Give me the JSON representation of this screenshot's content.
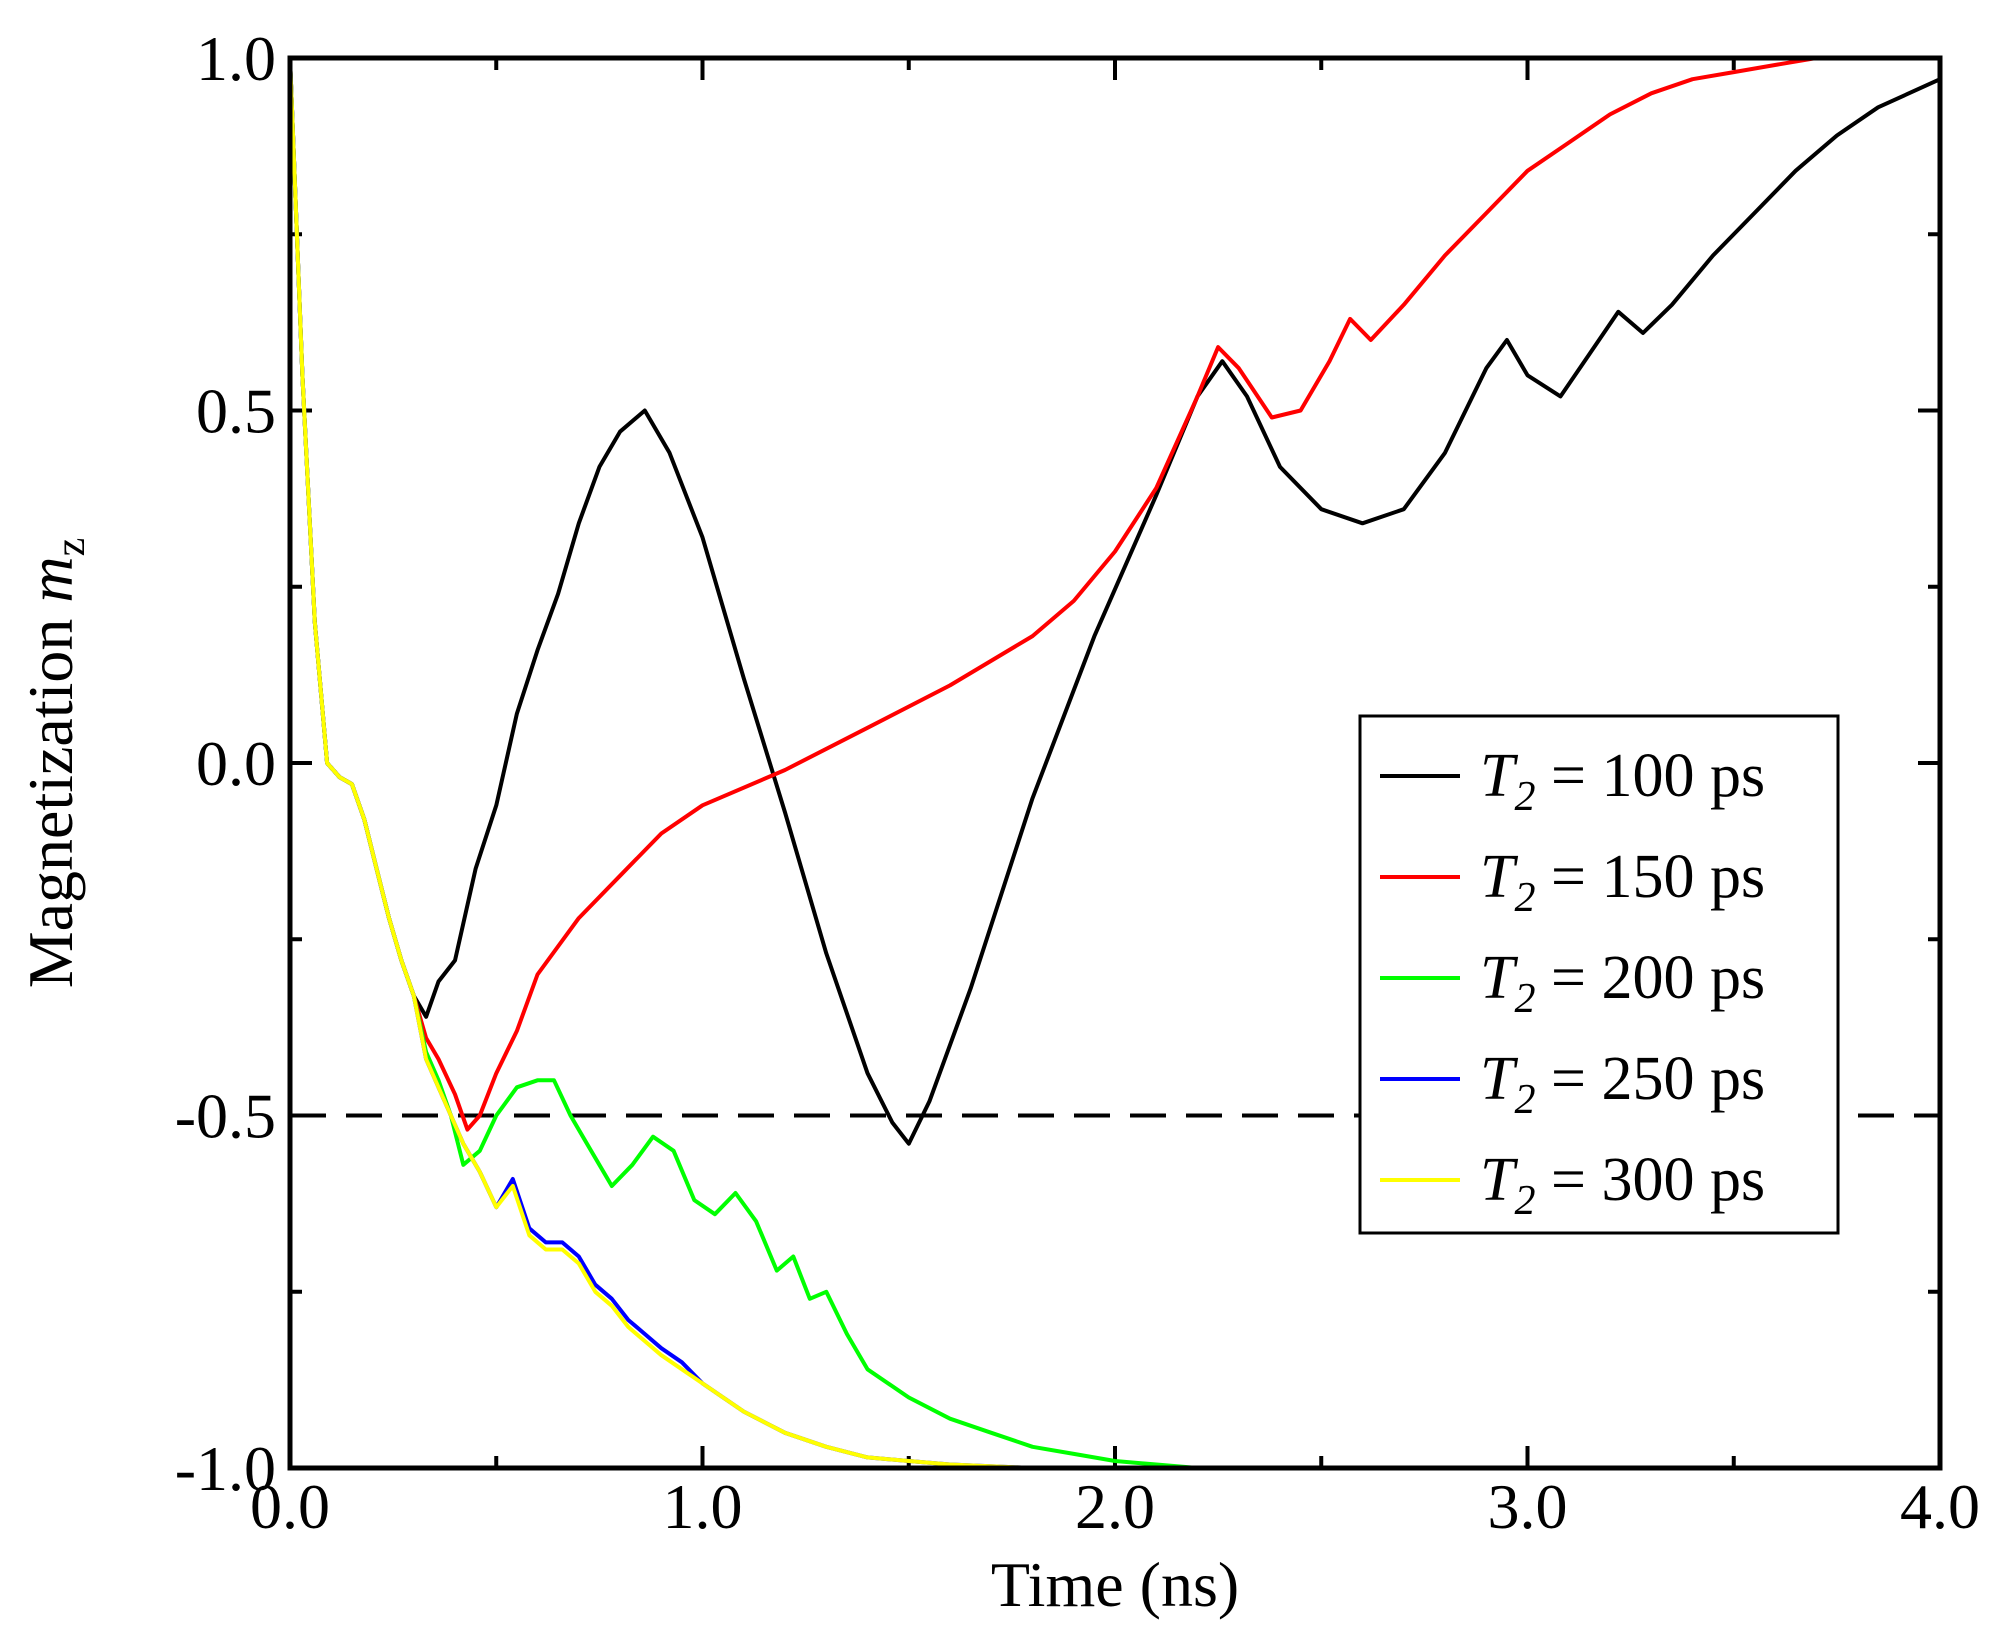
{
  "chart_data": {
    "type": "line",
    "xlabel": "Time (ns)",
    "ylabel_text": "Magnetization ",
    "ylabel_var": "m",
    "ylabel_sub": "z",
    "xlim": [
      0,
      4
    ],
    "ylim": [
      -1,
      1
    ],
    "x_ticks": [
      0,
      1,
      2,
      3,
      4
    ],
    "x_tick_labels": [
      "0.0",
      "1.0",
      "2.0",
      "3.0",
      "4.0"
    ],
    "y_ticks": [
      -1,
      -0.5,
      0,
      0.5,
      1
    ],
    "y_tick_labels": [
      "-1.0",
      "-0.5",
      "0.0",
      "0.5",
      "1.0"
    ],
    "x_minor_ticks": [
      0.5,
      1.5,
      2.5,
      3.5
    ],
    "y_minor_ticks": [
      -0.75,
      -0.25,
      0.25,
      0.75
    ],
    "reference_line": {
      "y": -0.5,
      "style": "dashed",
      "color": "#000000"
    },
    "legend": {
      "placement": "middle-right",
      "var": "T",
      "sub": "2"
    },
    "series": [
      {
        "name": "T2 = 100 ps",
        "legend_label": " = 100 ps",
        "color": "#000000",
        "x": [
          0,
          0.03,
          0.06,
          0.09,
          0.12,
          0.15,
          0.18,
          0.21,
          0.24,
          0.27,
          0.3,
          0.33,
          0.36,
          0.4,
          0.45,
          0.5,
          0.55,
          0.6,
          0.65,
          0.7,
          0.75,
          0.8,
          0.86,
          0.92,
          1.0,
          1.1,
          1.2,
          1.3,
          1.4,
          1.46,
          1.5,
          1.55,
          1.65,
          1.8,
          1.95,
          2.1,
          2.2,
          2.26,
          2.32,
          2.4,
          2.5,
          2.6,
          2.7,
          2.8,
          2.9,
          2.95,
          3.0,
          3.08,
          3.15,
          3.22,
          3.28,
          3.35,
          3.45,
          3.55,
          3.65,
          3.75,
          3.85,
          4.0
        ],
        "y": [
          1.0,
          0.55,
          0.2,
          0.0,
          -0.02,
          -0.03,
          -0.08,
          -0.15,
          -0.22,
          -0.28,
          -0.33,
          -0.36,
          -0.31,
          -0.28,
          -0.15,
          -0.06,
          0.07,
          0.16,
          0.24,
          0.34,
          0.42,
          0.47,
          0.5,
          0.44,
          0.32,
          0.12,
          -0.07,
          -0.27,
          -0.44,
          -0.51,
          -0.54,
          -0.48,
          -0.32,
          -0.05,
          0.18,
          0.38,
          0.52,
          0.57,
          0.52,
          0.42,
          0.36,
          0.34,
          0.36,
          0.44,
          0.56,
          0.6,
          0.55,
          0.52,
          0.58,
          0.64,
          0.61,
          0.65,
          0.72,
          0.78,
          0.84,
          0.89,
          0.93,
          0.97
        ]
      },
      {
        "name": "T2 = 150 ps",
        "legend_label": " = 150 ps",
        "color": "#ff0000",
        "x": [
          0,
          0.03,
          0.06,
          0.09,
          0.12,
          0.15,
          0.18,
          0.21,
          0.24,
          0.27,
          0.3,
          0.33,
          0.36,
          0.4,
          0.43,
          0.46,
          0.5,
          0.55,
          0.6,
          0.7,
          0.8,
          0.9,
          1.0,
          1.2,
          1.4,
          1.6,
          1.8,
          1.9,
          2.0,
          2.1,
          2.2,
          2.25,
          2.3,
          2.38,
          2.45,
          2.52,
          2.57,
          2.62,
          2.7,
          2.8,
          2.9,
          3.0,
          3.1,
          3.2,
          3.3,
          3.4,
          3.5,
          3.6,
          3.7,
          3.8,
          4.0
        ],
        "y": [
          1.0,
          0.55,
          0.2,
          0.0,
          -0.02,
          -0.03,
          -0.08,
          -0.15,
          -0.22,
          -0.28,
          -0.33,
          -0.39,
          -0.42,
          -0.47,
          -0.52,
          -0.5,
          -0.44,
          -0.38,
          -0.3,
          -0.22,
          -0.16,
          -0.1,
          -0.06,
          -0.01,
          0.05,
          0.11,
          0.18,
          0.23,
          0.3,
          0.39,
          0.52,
          0.59,
          0.56,
          0.49,
          0.5,
          0.57,
          0.63,
          0.6,
          0.65,
          0.72,
          0.78,
          0.84,
          0.88,
          0.92,
          0.95,
          0.97,
          0.98,
          0.99,
          1.0,
          1.0,
          1.0
        ]
      },
      {
        "name": "T2 = 200 ps",
        "legend_label": " = 200 ps",
        "color": "#00ff00",
        "x": [
          0,
          0.03,
          0.06,
          0.09,
          0.12,
          0.15,
          0.18,
          0.21,
          0.24,
          0.27,
          0.3,
          0.33,
          0.36,
          0.39,
          0.42,
          0.46,
          0.5,
          0.55,
          0.6,
          0.64,
          0.68,
          0.73,
          0.78,
          0.83,
          0.88,
          0.93,
          0.98,
          1.03,
          1.08,
          1.13,
          1.18,
          1.22,
          1.26,
          1.3,
          1.35,
          1.4,
          1.5,
          1.6,
          1.7,
          1.8,
          1.9,
          2.0,
          2.1,
          2.2,
          2.4,
          2.6
        ],
        "y": [
          1.0,
          0.55,
          0.2,
          0.0,
          -0.02,
          -0.03,
          -0.08,
          -0.15,
          -0.22,
          -0.28,
          -0.33,
          -0.41,
          -0.45,
          -0.5,
          -0.57,
          -0.55,
          -0.5,
          -0.46,
          -0.45,
          -0.45,
          -0.5,
          -0.55,
          -0.6,
          -0.57,
          -0.53,
          -0.55,
          -0.62,
          -0.64,
          -0.61,
          -0.65,
          -0.72,
          -0.7,
          -0.76,
          -0.75,
          -0.81,
          -0.86,
          -0.9,
          -0.93,
          -0.95,
          -0.97,
          -0.98,
          -0.99,
          -0.995,
          -1.0,
          -1.0,
          -1.0
        ]
      },
      {
        "name": "T2 = 250 ps",
        "legend_label": " = 250 ps",
        "color": "#0000ff",
        "x": [
          0,
          0.03,
          0.06,
          0.09,
          0.12,
          0.15,
          0.18,
          0.21,
          0.24,
          0.27,
          0.3,
          0.33,
          0.36,
          0.39,
          0.42,
          0.46,
          0.5,
          0.54,
          0.58,
          0.62,
          0.66,
          0.7,
          0.74,
          0.78,
          0.82,
          0.86,
          0.9,
          0.95,
          1.0,
          1.1,
          1.2,
          1.3,
          1.4,
          1.5,
          1.6,
          1.8,
          2.0
        ],
        "y": [
          1.0,
          0.55,
          0.2,
          0.0,
          -0.02,
          -0.03,
          -0.08,
          -0.15,
          -0.22,
          -0.28,
          -0.33,
          -0.42,
          -0.46,
          -0.5,
          -0.54,
          -0.58,
          -0.63,
          -0.59,
          -0.66,
          -0.68,
          -0.68,
          -0.7,
          -0.74,
          -0.76,
          -0.79,
          -0.81,
          -0.83,
          -0.85,
          -0.88,
          -0.92,
          -0.95,
          -0.97,
          -0.985,
          -0.99,
          -0.995,
          -1.0,
          -1.0
        ]
      },
      {
        "name": "T2 = 300 ps",
        "legend_label": " = 300 ps",
        "color": "#ffff00",
        "x": [
          0,
          0.03,
          0.06,
          0.09,
          0.12,
          0.15,
          0.18,
          0.21,
          0.24,
          0.27,
          0.3,
          0.33,
          0.36,
          0.39,
          0.42,
          0.46,
          0.5,
          0.54,
          0.58,
          0.62,
          0.66,
          0.7,
          0.74,
          0.78,
          0.82,
          0.86,
          0.9,
          0.95,
          1.0,
          1.1,
          1.2,
          1.3,
          1.4,
          1.5,
          1.6,
          1.8,
          2.0
        ],
        "y": [
          1.0,
          0.55,
          0.2,
          0.0,
          -0.02,
          -0.03,
          -0.08,
          -0.15,
          -0.22,
          -0.28,
          -0.33,
          -0.42,
          -0.46,
          -0.5,
          -0.54,
          -0.58,
          -0.63,
          -0.6,
          -0.67,
          -0.69,
          -0.69,
          -0.71,
          -0.75,
          -0.77,
          -0.8,
          -0.82,
          -0.84,
          -0.86,
          -0.88,
          -0.92,
          -0.95,
          -0.97,
          -0.985,
          -0.99,
          -0.995,
          -1.0,
          -1.0
        ]
      }
    ]
  }
}
